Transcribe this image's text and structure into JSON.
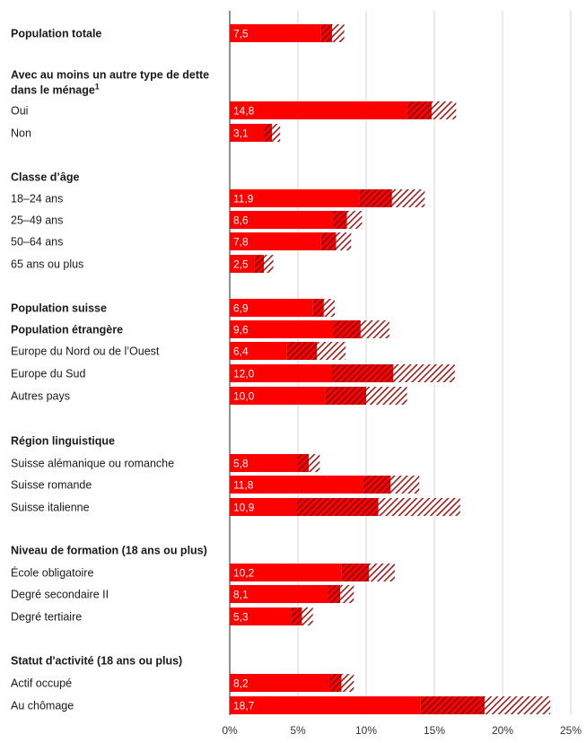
{
  "chart_data": {
    "type": "bar",
    "orientation": "horizontal",
    "xlim": [
      0,
      25
    ],
    "x_ticks": [
      "0%",
      "5%",
      "10%",
      "15%",
      "20%",
      "25%"
    ],
    "grid": true,
    "colors": {
      "bar": "#ff0000",
      "hatch": "#9e1c1c",
      "text": "#1a1a1a"
    },
    "rows": [
      {
        "label": "Population totale",
        "bold": true,
        "value": 7.5,
        "value_label": "7,5",
        "ci": [
          6.7,
          8.4
        ]
      },
      {
        "label": "Avec au moins un autre type de dette",
        "bold": true,
        "header": true
      },
      {
        "label": "dans le ménage",
        "bold": true,
        "header": true,
        "footnote": "1"
      },
      {
        "label": "Oui",
        "value": 14.8,
        "value_label": "14,8",
        "ci": [
          13.0,
          16.6
        ]
      },
      {
        "label": "Non",
        "value": 3.1,
        "value_label": "3,1",
        "ci": [
          2.5,
          3.7
        ]
      },
      {
        "label": "Classe d’âge",
        "bold": true,
        "header": true
      },
      {
        "label": "18–24 ans",
        "value": 11.9,
        "value_label": "11,9",
        "ci": [
          9.5,
          14.3
        ]
      },
      {
        "label": "25–49 ans",
        "value": 8.6,
        "value_label": "8,6",
        "ci": [
          7.6,
          9.7
        ]
      },
      {
        "label": "50–64 ans",
        "value": 7.8,
        "value_label": "7,8",
        "ci": [
          6.7,
          8.9
        ]
      },
      {
        "label": "65 ans ou plus",
        "value": 2.5,
        "value_label": "2,5",
        "ci": [
          1.8,
          3.2
        ]
      },
      {
        "label": "Population suisse",
        "bold": true,
        "value": 6.9,
        "value_label": "6,9",
        "ci": [
          6.1,
          7.7
        ]
      },
      {
        "label": "Population étrangère",
        "bold": true,
        "value": 9.6,
        "value_label": "9,6",
        "ci": [
          7.6,
          11.7
        ]
      },
      {
        "label": "Europe du Nord ou de l’Ouest",
        "value": 6.4,
        "value_label": "6,4",
        "ci": [
          4.2,
          8.5
        ]
      },
      {
        "label": "Europe du Sud",
        "value": 12.0,
        "value_label": "12,0",
        "ci": [
          7.5,
          16.5
        ]
      },
      {
        "label": "Autres pays",
        "value": 10.0,
        "value_label": "10,0",
        "ci": [
          7.0,
          13.0
        ]
      },
      {
        "label": "Région linguistique",
        "bold": true,
        "header": true
      },
      {
        "label": "Suisse alémanique ou romanche",
        "value": 5.8,
        "value_label": "5,8",
        "ci": [
          5.0,
          6.6
        ]
      },
      {
        "label": "Suisse romande",
        "value": 11.8,
        "value_label": "11,8",
        "ci": [
          9.8,
          13.9
        ]
      },
      {
        "label": "Suisse italienne",
        "value": 10.9,
        "value_label": "10,9",
        "ci": [
          4.9,
          16.9
        ]
      },
      {
        "label": "Niveau de formation (18 ans ou plus)",
        "bold": true,
        "header": true
      },
      {
        "label": "École obligatoire",
        "value": 10.2,
        "value_label": "10,2",
        "ci": [
          8.2,
          12.1
        ]
      },
      {
        "label": "Degré secondaire II",
        "value": 8.1,
        "value_label": "8,1",
        "ci": [
          7.2,
          9.1
        ]
      },
      {
        "label": "Degré tertiaire",
        "value": 5.3,
        "value_label": "5,3",
        "ci": [
          4.5,
          6.1
        ]
      },
      {
        "label": "Statut d'activité (18 ans ou plus)",
        "bold": true,
        "header": true
      },
      {
        "label": "Actif occupé",
        "value": 8.2,
        "value_label": "8,2",
        "ci": [
          7.3,
          9.1
        ]
      },
      {
        "label": "Au chômage",
        "value": 18.7,
        "value_label": "18,7",
        "ci": [
          14.0,
          23.5
        ]
      }
    ]
  }
}
